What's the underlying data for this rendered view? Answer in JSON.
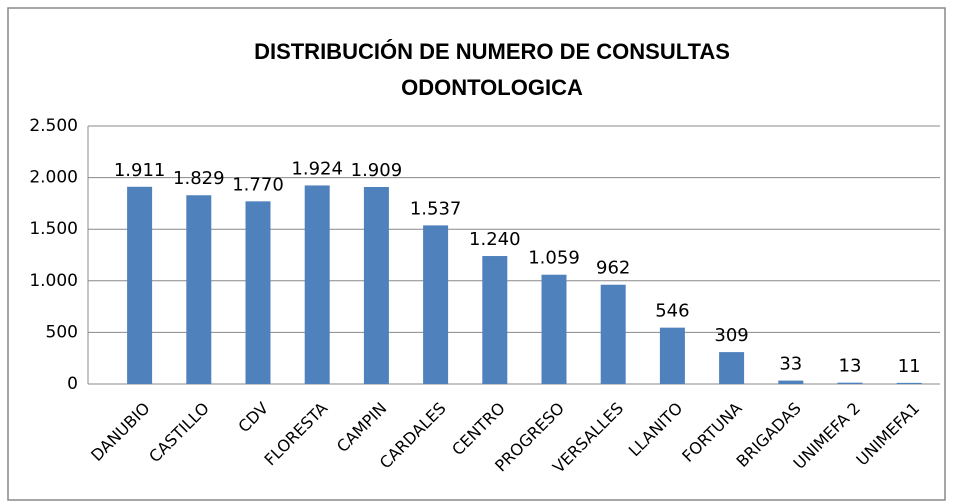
{
  "chart_data": {
    "type": "bar",
    "title": "DISTRIBUCIÓN DE NUMERO DE CONSULTAS ODONTOLOGICA",
    "categories": [
      "DANUBIO",
      "CASTILLO",
      "CDV",
      "FLORESTA",
      "CAMPIN",
      "CARDALES",
      "CENTRO",
      "PROGRESO",
      "VERSALLES",
      "LLANITO",
      "FORTUNA",
      "BRIGADAS",
      "UNIMEFA 2",
      "UNIMEFA1"
    ],
    "values": [
      1911,
      1829,
      1770,
      1924,
      1909,
      1537,
      1240,
      1059,
      962,
      546,
      309,
      33,
      13,
      11
    ],
    "value_labels": [
      "1.911",
      "1.829",
      "1.770",
      "1.924",
      "1.909",
      "1.537",
      "1.240",
      "1.059",
      "962",
      "546",
      "309",
      "33",
      "13",
      "11"
    ],
    "color": "#4f81bd",
    "ylim": [
      0,
      2500
    ],
    "yticks": [
      0,
      500,
      {
        "value": 1000,
        "label": "1.000"
      },
      {
        "value": 1500,
        "label": "1.500"
      },
      {
        "value": 2000,
        "label": "2.000"
      },
      {
        "value": 2500,
        "label": "2.500"
      }
    ],
    "grid": true
  }
}
